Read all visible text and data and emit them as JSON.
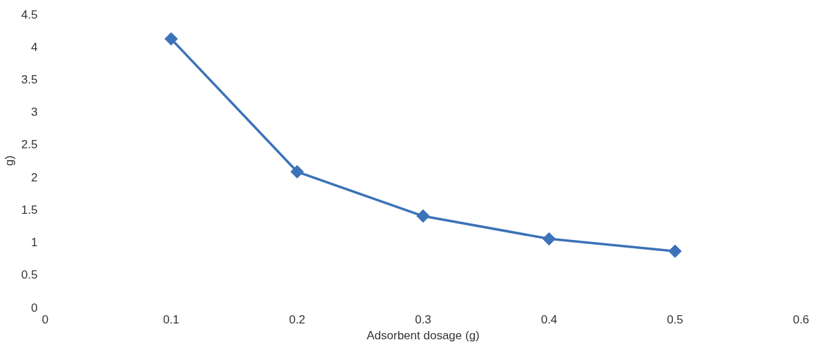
{
  "chart_data": {
    "type": "line",
    "xlabel": "Adsorbent dosage (g)",
    "ylabel": "g)",
    "x": [
      0.1,
      0.2,
      0.3,
      0.4,
      0.5
    ],
    "series": [
      {
        "color": "#3c72b8",
        "values": [
          4.12,
          2.08,
          1.4,
          1.05,
          0.86
        ]
      }
    ],
    "xlim": [
      0,
      0.6
    ],
    "xticks": [
      0,
      0.1,
      0.2,
      0.3,
      0.4,
      0.5,
      0.6
    ],
    "ylim": [
      0,
      4.5
    ],
    "yticks": [
      0,
      0.5,
      1,
      1.5,
      2,
      2.5,
      3,
      3.5,
      4,
      4.5
    ],
    "marker": "diamond",
    "line_style": "solid",
    "grid": false
  }
}
